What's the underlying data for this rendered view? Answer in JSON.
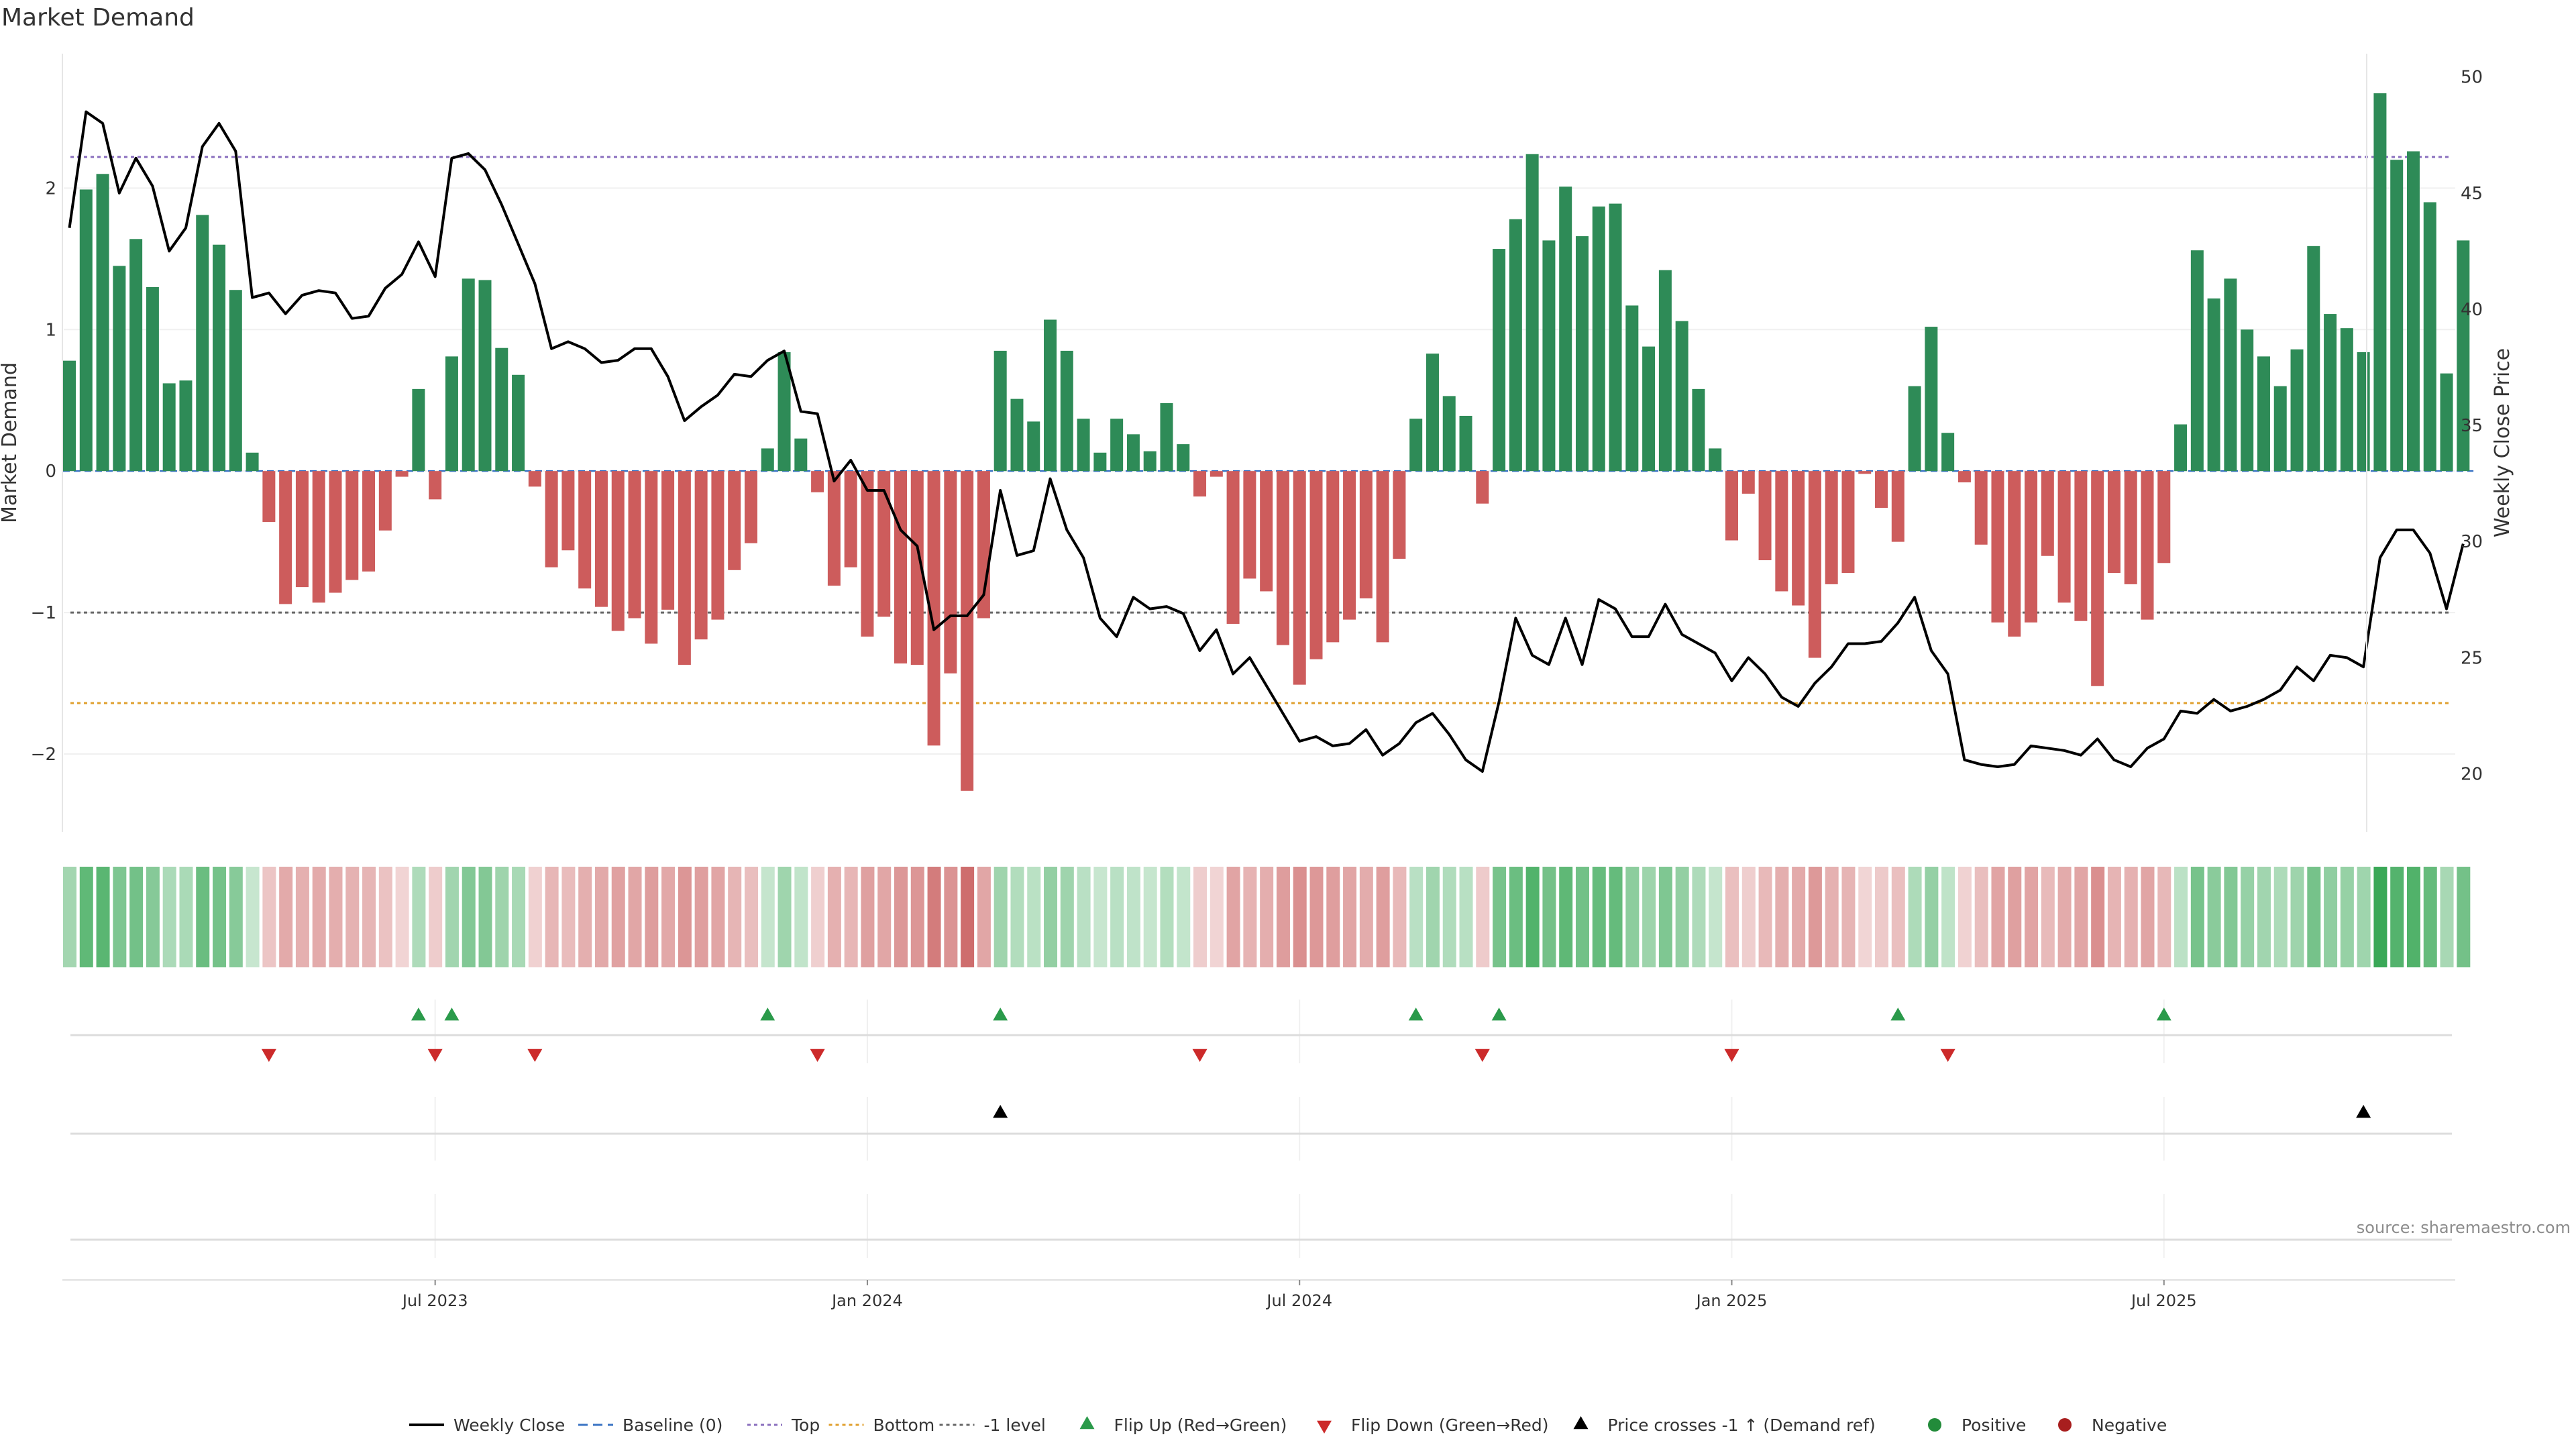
{
  "chart_data": {
    "type": "bar",
    "title": "Market Demand",
    "source": "source: sharemaestro.com",
    "ylabel": "Market Demand",
    "y2label": "Weekly Close Price",
    "ylim": [
      -2.55,
      2.95
    ],
    "y2lim": [
      17.5,
      51
    ],
    "y_ticks": [
      2,
      1,
      0,
      -1,
      -2
    ],
    "y_tick_labels": [
      "2",
      "1",
      "0",
      "−1",
      "−2"
    ],
    "y2_ticks": [
      50,
      45,
      40,
      35,
      30,
      25,
      20
    ],
    "y2_tick_labels": [
      "50",
      "45",
      "40",
      "35",
      "30",
      "25",
      "20"
    ],
    "x_ticks": [
      {
        "week": 22,
        "label": "Jul 2023"
      },
      {
        "week": 48,
        "label": "Jan 2024"
      },
      {
        "week": 74,
        "label": "Jul 2024"
      },
      {
        "week": 100,
        "label": "Jan 2025"
      },
      {
        "week": 126,
        "label": "Jul 2025"
      }
    ],
    "reference_lines": {
      "top": 2.22,
      "bottom": -1.64,
      "minus_one": -1.0,
      "baseline": 0
    },
    "series": [
      {
        "name": "Market Demand",
        "values": [
          0.78,
          1.99,
          2.1,
          1.45,
          1.64,
          1.3,
          0.62,
          0.64,
          1.81,
          1.6,
          1.28,
          0.13,
          -0.36,
          -0.94,
          -0.82,
          -0.93,
          -0.86,
          -0.77,
          -0.71,
          -0.42,
          -0.04,
          0.58,
          -0.2,
          0.81,
          1.36,
          1.35,
          0.87,
          0.68,
          -0.11,
          -0.68,
          -0.56,
          -0.83,
          -0.96,
          -1.13,
          -1.04,
          -1.22,
          -0.98,
          -1.37,
          -1.19,
          -1.05,
          -0.7,
          -0.51,
          0.16,
          0.84,
          0.23,
          -0.15,
          -0.81,
          -0.68,
          -1.17,
          -1.03,
          -1.36,
          -1.37,
          -1.94,
          -1.43,
          -2.26,
          -1.04,
          0.85,
          0.51,
          0.35,
          1.07,
          0.85,
          0.37,
          0.13,
          0.37,
          0.26,
          0.14,
          0.48,
          0.19,
          -0.18,
          -0.04,
          -1.08,
          -0.76,
          -0.85,
          -1.23,
          -1.51,
          -1.33,
          -1.21,
          -1.05,
          -0.9,
          -1.21,
          -0.62,
          0.37,
          0.83,
          0.53,
          0.39,
          -0.23,
          1.57,
          1.78,
          2.24,
          1.63,
          2.01,
          1.66,
          1.87,
          1.89,
          1.17,
          0.88,
          1.42,
          1.06,
          0.58,
          0.16,
          -0.49,
          -0.16,
          -0.63,
          -0.85,
          -0.95,
          -1.32,
          -0.8,
          -0.72,
          -0.02,
          -0.26,
          -0.5,
          0.6,
          1.02,
          0.27,
          -0.08,
          -0.52,
          -1.07,
          -1.17,
          -1.07,
          -0.6,
          -0.93,
          -1.06,
          -1.52,
          -0.72,
          -0.8,
          -1.05,
          -0.65,
          0.33,
          1.56,
          1.22,
          1.36,
          1.0,
          0.81,
          0.6,
          0.86,
          1.59,
          1.11,
          1.01,
          0.84,
          2.67,
          2.2,
          2.26,
          1.9,
          0.69,
          1.63
        ]
      },
      {
        "name": "Weekly Close",
        "values": [
          43.5,
          48.5,
          48,
          45,
          46.5,
          45.3,
          42.5,
          43.5,
          47,
          48,
          46.8,
          40.5,
          40.7,
          39.8,
          40.6,
          40.8,
          40.7,
          39.6,
          39.7,
          40.9,
          41.5,
          42.9,
          41.4,
          46.5,
          46.7,
          46,
          44.5,
          42.8,
          41.1,
          38.3,
          38.6,
          38.3,
          37.7,
          37.8,
          38.3,
          38.3,
          37.1,
          35.2,
          35.8,
          36.3,
          37.2,
          37.1,
          37.8,
          38.2,
          35.6,
          35.5,
          32.6,
          33.5,
          32.2,
          32.2,
          30.5,
          29.8,
          26.2,
          26.8,
          26.8,
          27.7,
          32.2,
          29.4,
          29.6,
          32.7,
          30.5,
          29.3,
          26.7,
          25.9,
          27.6,
          27.1,
          27.2,
          26.9,
          25.3,
          26.2,
          24.3,
          25,
          23.8,
          22.6,
          21.4,
          21.6,
          21.2,
          21.3,
          21.9,
          20.8,
          21.3,
          22.2,
          22.6,
          21.7,
          20.6,
          20.1,
          23.1,
          26.7,
          25.1,
          24.7,
          26.7,
          24.7,
          27.5,
          27.1,
          25.9,
          25.9,
          27.3,
          26,
          25.6,
          25.2,
          24,
          25,
          24.3,
          23.3,
          22.9,
          23.9,
          24.6,
          25.6,
          25.6,
          25.7,
          26.5,
          27.6,
          25.3,
          24.3,
          20.6,
          20.4,
          20.3,
          20.4,
          21.2,
          21.1,
          21,
          20.8,
          21.5,
          20.6,
          20.3,
          21.1,
          21.5,
          22.7,
          22.6,
          23.2,
          22.7,
          22.9,
          23.2,
          23.6,
          24.6,
          24,
          25.1,
          25,
          24.6,
          29.3,
          30.5,
          30.5,
          29.5,
          27.1,
          29.9
        ]
      }
    ],
    "demand_strip": {
      "type": "heatmap",
      "rows": [
        "Market Demand"
      ],
      "source_series": "Market Demand"
    },
    "markers": {
      "flip_up_weeks": [
        21,
        23,
        42,
        56,
        81,
        86,
        110,
        126
      ],
      "flip_down_weeks": [
        12,
        22,
        28,
        45,
        68,
        85,
        100,
        113
      ],
      "price_cross_weeks": [
        56,
        138
      ]
    },
    "legend": {
      "position": "bottom",
      "items": [
        {
          "label": "Weekly Close",
          "kind": "solid",
          "color": "#000000"
        },
        {
          "label": "Baseline (0)",
          "kind": "dashed",
          "color": "#3b74c4"
        },
        {
          "label": "Top",
          "kind": "dotted",
          "color": "#8a6fbe"
        },
        {
          "label": "Bottom",
          "kind": "dotted",
          "color": "#e0a02f"
        },
        {
          "label": "-1 level",
          "kind": "dotted",
          "color": "#666666"
        },
        {
          "label": "Flip Up (Red→Green)",
          "kind": "up",
          "color": "#2a9a4a"
        },
        {
          "label": "Flip Down (Green→Red)",
          "kind": "down",
          "color": "#cc2a2a"
        },
        {
          "label": "Price crosses -1 ↑ (Demand ref)",
          "kind": "up",
          "color": "#000000"
        },
        {
          "label": "Positive",
          "kind": "dot",
          "color": "#228b3a"
        },
        {
          "label": "Negative",
          "kind": "dot",
          "color": "#a81e1e"
        }
      ]
    },
    "colors": {
      "positive": "#2e8b57",
      "negative": "#cd5c5c",
      "price": "#000000",
      "top": "#8a6fbe",
      "bottom": "#e0a02f",
      "minus_one": "#666666",
      "up_marker": "#2a9a4a",
      "down_marker": "#cc2a2a",
      "cross_marker": "#000000"
    }
  }
}
